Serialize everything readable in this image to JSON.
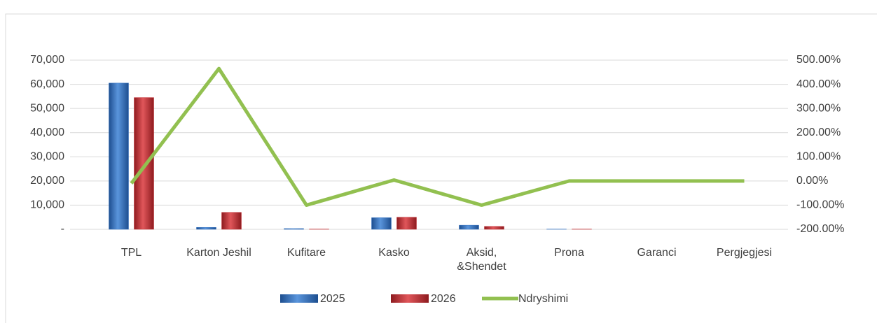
{
  "chart_data": {
    "type": "bar-line",
    "categories": [
      "TPL",
      "Karton Jeshil",
      "Kufitare",
      "Kasko",
      "Aksid, &Shendet",
      "Prona",
      "Garanci",
      "Pergjegjesi"
    ],
    "series": [
      {
        "name": "2025",
        "color": "#2e6fc0",
        "type": "bar",
        "values": [
          60500,
          800,
          300,
          4800,
          1700,
          100,
          0,
          0
        ]
      },
      {
        "name": "2026",
        "color": "#c0282d",
        "type": "bar",
        "values": [
          54500,
          7000,
          100,
          5000,
          1200,
          100,
          0,
          0
        ]
      },
      {
        "name": "Ndryshimi",
        "color": "#92c050",
        "type": "line",
        "axis": "y2",
        "values": [
          -10,
          465,
          -100,
          4,
          -100,
          0,
          0,
          0
        ]
      }
    ],
    "ylim": [
      0,
      70000
    ],
    "yticks": [
      {
        "value": 0,
        "label": "-"
      },
      {
        "value": 10000,
        "label": "10,000"
      },
      {
        "value": 20000,
        "label": "20,000"
      },
      {
        "value": 30000,
        "label": "30,000"
      },
      {
        "value": 40000,
        "label": "40,000"
      },
      {
        "value": 50000,
        "label": "50,000"
      },
      {
        "value": 60000,
        "label": "60,000"
      },
      {
        "value": 70000,
        "label": "70,000"
      }
    ],
    "y2lim": [
      -200,
      500
    ],
    "y2ticks": [
      {
        "value": -200,
        "label": "-200.00%"
      },
      {
        "value": -100,
        "label": "-100.00%"
      },
      {
        "value": 0,
        "label": "0.00%"
      },
      {
        "value": 100,
        "label": "100.00%"
      },
      {
        "value": 200,
        "label": "200.00%"
      },
      {
        "value": 300,
        "label": "300.00%"
      },
      {
        "value": 400,
        "label": "400.00%"
      },
      {
        "value": 500,
        "label": "500.00%"
      }
    ],
    "grid": true,
    "legend": "bottom"
  }
}
